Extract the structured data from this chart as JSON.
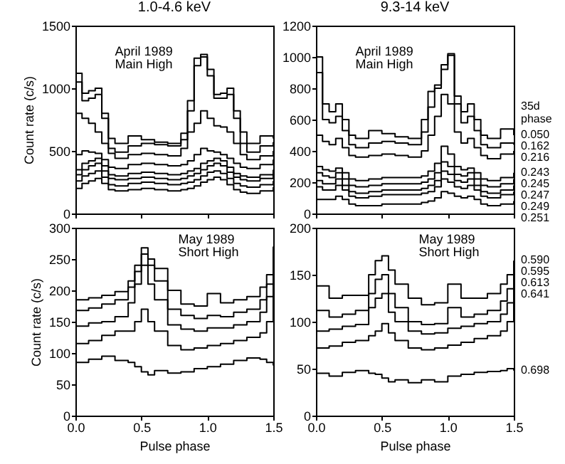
{
  "chart_data": [
    {
      "type": "step",
      "title": "1.0-4.6 keV",
      "ylabel": "Count rate (c/s)",
      "annotations": [
        "April 1989",
        "Main High"
      ],
      "tick_labels": "y",
      "grid": false,
      "x": [
        0,
        0.05,
        0.1,
        0.15,
        0.2,
        0.25,
        0.3,
        0.4,
        0.5,
        0.6,
        0.7,
        0.8,
        0.85,
        0.9,
        0.95,
        1.0,
        1.05,
        1.1,
        1.15,
        1.2,
        1.25,
        1.3,
        1.4,
        1.5
      ],
      "xlim": [
        0,
        1.5
      ],
      "xticks": [
        {
          "value": 0,
          "label": null
        },
        {
          "value": 0.5,
          "label": null
        },
        {
          "value": 1,
          "label": null
        },
        {
          "value": 1.5,
          "label": null
        }
      ],
      "ylim": [
        0,
        1500
      ],
      "yticks": [
        0,
        500,
        1000,
        1500
      ],
      "series": [
        {
          "color": "#000000",
          "values": [
            1120,
            960,
            980,
            1000,
            800,
            600,
            560,
            620,
            590,
            570,
            560,
            640,
            900,
            1240,
            1270,
            1150,
            950,
            960,
            1000,
            820,
            650,
            560,
            620,
            600
          ]
        },
        {
          "color": "#000000",
          "values": [
            1050,
            900,
            920,
            950,
            760,
            520,
            490,
            540,
            560,
            550,
            540,
            590,
            820,
            1180,
            1250,
            1100,
            920,
            920,
            950,
            760,
            560,
            490,
            540,
            570
          ]
        },
        {
          "color": "#000000",
          "values": [
            800,
            760,
            720,
            650,
            560,
            480,
            440,
            470,
            480,
            470,
            460,
            520,
            650,
            720,
            820,
            760,
            700,
            690,
            650,
            560,
            470,
            430,
            460,
            500
          ]
        },
        {
          "color": "#000000",
          "values": [
            470,
            500,
            490,
            480,
            430,
            370,
            360,
            390,
            400,
            390,
            380,
            390,
            420,
            470,
            520,
            500,
            490,
            470,
            440,
            400,
            370,
            360,
            390,
            430
          ]
        },
        {
          "color": "#000000",
          "values": [
            350,
            400,
            420,
            440,
            380,
            310,
            300,
            320,
            330,
            320,
            310,
            320,
            340,
            360,
            400,
            420,
            440,
            420,
            370,
            320,
            300,
            290,
            310,
            350
          ]
        },
        {
          "color": "#000000",
          "values": [
            310,
            350,
            380,
            400,
            340,
            280,
            270,
            280,
            290,
            280,
            270,
            280,
            300,
            320,
            350,
            380,
            400,
            380,
            330,
            290,
            270,
            260,
            280,
            310
          ]
        },
        {
          "color": "#000000",
          "values": [
            260,
            300,
            320,
            340,
            290,
            230,
            220,
            240,
            250,
            240,
            230,
            240,
            250,
            270,
            300,
            330,
            340,
            320,
            280,
            240,
            220,
            210,
            230,
            260
          ]
        },
        {
          "color": "#000000",
          "values": [
            200,
            240,
            260,
            280,
            240,
            190,
            180,
            190,
            200,
            190,
            180,
            190,
            200,
            220,
            250,
            270,
            290,
            270,
            230,
            190,
            170,
            160,
            180,
            210
          ]
        }
      ]
    },
    {
      "type": "step",
      "title": "9.3-14 keV",
      "legend_title": "35d phase",
      "annotations": [
        "April 1989",
        "Main High"
      ],
      "tick_labels": "y",
      "grid": false,
      "x": [
        0,
        0.05,
        0.1,
        0.15,
        0.2,
        0.25,
        0.3,
        0.4,
        0.5,
        0.6,
        0.7,
        0.8,
        0.85,
        0.9,
        0.95,
        1.0,
        1.05,
        1.1,
        1.15,
        1.2,
        1.25,
        1.3,
        1.4,
        1.5
      ],
      "xlim": [
        0,
        1.5
      ],
      "xticks": [
        {
          "value": 0,
          "label": null
        },
        {
          "value": 0.5,
          "label": null
        },
        {
          "value": 1,
          "label": null
        },
        {
          "value": 1.5,
          "label": null
        }
      ],
      "ylim": [
        0,
        1200
      ],
      "yticks": [
        0,
        200,
        400,
        600,
        800,
        1000,
        1200
      ],
      "series": [
        {
          "name": "0.050",
          "color": "#000000",
          "values": [
            1000,
            700,
            650,
            700,
            600,
            500,
            480,
            530,
            510,
            490,
            480,
            600,
            780,
            820,
            950,
            1020,
            750,
            650,
            700,
            600,
            500,
            480,
            540,
            500
          ]
        },
        {
          "name": "0.162",
          "color": "#000000",
          "values": [
            900,
            600,
            580,
            620,
            530,
            440,
            420,
            450,
            460,
            450,
            440,
            520,
            680,
            800,
            920,
            1010,
            700,
            580,
            620,
            530,
            440,
            420,
            450,
            440
          ]
        },
        {
          "name": "0.216",
          "color": "#000000",
          "values": [
            500,
            460,
            440,
            480,
            420,
            370,
            360,
            370,
            380,
            370,
            360,
            400,
            500,
            620,
            760,
            700,
            520,
            450,
            480,
            420,
            370,
            350,
            380,
            400
          ]
        },
        {
          "name": "0.243",
          "color": "#000000",
          "values": [
            300,
            280,
            270,
            290,
            260,
            220,
            210,
            220,
            230,
            230,
            230,
            240,
            270,
            320,
            430,
            380,
            300,
            280,
            290,
            260,
            220,
            210,
            230,
            260
          ]
        },
        {
          "name": "0.245",
          "color": "#000000",
          "values": [
            260,
            240,
            230,
            260,
            220,
            180,
            170,
            180,
            190,
            190,
            190,
            200,
            220,
            260,
            330,
            300,
            250,
            240,
            260,
            220,
            180,
            170,
            190,
            220
          ]
        },
        {
          "name": "0.247",
          "color": "#000000",
          "values": [
            210,
            190,
            190,
            220,
            180,
            140,
            130,
            140,
            150,
            150,
            150,
            160,
            180,
            210,
            270,
            250,
            210,
            200,
            220,
            180,
            140,
            130,
            150,
            180
          ]
        },
        {
          "name": "0.249",
          "color": "#000000",
          "values": [
            170,
            150,
            150,
            180,
            150,
            110,
            100,
            110,
            120,
            120,
            120,
            130,
            140,
            170,
            220,
            200,
            170,
            160,
            180,
            150,
            110,
            100,
            120,
            140
          ]
        },
        {
          "name": "0.251",
          "color": "#000000",
          "values": [
            90,
            90,
            90,
            110,
            90,
            60,
            50,
            50,
            60,
            60,
            60,
            70,
            80,
            100,
            140,
            130,
            110,
            100,
            110,
            90,
            60,
            50,
            60,
            80
          ]
        }
      ]
    },
    {
      "type": "step",
      "xlabel": "Pulse phase",
      "ylabel": "Count rate (c/s)",
      "annotations": [
        "May 1989",
        "Short High"
      ],
      "grid": false,
      "x": [
        0,
        0.1,
        0.2,
        0.3,
        0.4,
        0.45,
        0.5,
        0.55,
        0.6,
        0.7,
        0.8,
        0.9,
        1.0,
        1.1,
        1.2,
        1.3,
        1.4,
        1.45,
        1.5
      ],
      "xlim": [
        0,
        1.5
      ],
      "xticks": [
        {
          "value": 0,
          "label": "0.0"
        },
        {
          "value": 0.5,
          "label": "0.5"
        },
        {
          "value": 1,
          "label": "1.0"
        },
        {
          "value": 1.5,
          "label": "1.5"
        }
      ],
      "ylim": [
        0,
        300
      ],
      "yticks": [
        0,
        50,
        100,
        150,
        200,
        250,
        300
      ],
      "series": [
        {
          "color": "#000000",
          "values": [
            185,
            188,
            192,
            198,
            215,
            240,
            268,
            250,
            235,
            200,
            178,
            175,
            195,
            180,
            185,
            190,
            205,
            225,
            270
          ]
        },
        {
          "color": "#000000",
          "values": [
            168,
            172,
            178,
            185,
            205,
            230,
            258,
            240,
            215,
            170,
            160,
            155,
            160,
            158,
            165,
            170,
            185,
            210,
            250
          ]
        },
        {
          "color": "#000000",
          "values": [
            143,
            148,
            150,
            158,
            180,
            210,
            240,
            210,
            185,
            145,
            138,
            135,
            140,
            140,
            145,
            150,
            165,
            190,
            230
          ]
        },
        {
          "color": "#000000",
          "values": [
            115,
            120,
            128,
            135,
            135,
            150,
            170,
            150,
            135,
            112,
            105,
            108,
            112,
            115,
            120,
            125,
            132,
            150,
            200
          ]
        },
        {
          "color": "#000000",
          "values": [
            85,
            90,
            95,
            88,
            85,
            78,
            70,
            65,
            72,
            68,
            70,
            75,
            78,
            82,
            88,
            92,
            90,
            85,
            80
          ]
        }
      ]
    },
    {
      "type": "step",
      "xlabel": "Pulse phase",
      "annotations": [
        "May 1989",
        "Short High"
      ],
      "grid": false,
      "x": [
        0,
        0.1,
        0.2,
        0.3,
        0.4,
        0.45,
        0.5,
        0.55,
        0.6,
        0.7,
        0.8,
        0.9,
        1.0,
        1.1,
        1.2,
        1.3,
        1.4,
        1.45,
        1.5
      ],
      "xlim": [
        0,
        1.5
      ],
      "xticks": [
        {
          "value": 0,
          "label": "0.0"
        },
        {
          "value": 0.5,
          "label": "0.5"
        },
        {
          "value": 1,
          "label": "1.0"
        },
        {
          "value": 1.5,
          "label": "1.5"
        }
      ],
      "ylim": [
        0,
        200
      ],
      "yticks": [
        0,
        50,
        100,
        150,
        200
      ],
      "series": [
        {
          "name": "0.590",
          "color": "#000000",
          "values": [
            138,
            125,
            128,
            128,
            150,
            165,
            170,
            155,
            140,
            125,
            118,
            120,
            140,
            125,
            125,
            130,
            140,
            150,
            165
          ]
        },
        {
          "name": "0.595",
          "color": "#000000",
          "values": [
            112,
            105,
            108,
            112,
            130,
            145,
            150,
            130,
            115,
            100,
            97,
            98,
            115,
            105,
            108,
            112,
            122,
            135,
            160
          ]
        },
        {
          "name": "0.613",
          "color": "#000000",
          "values": [
            90,
            92,
            95,
            97,
            115,
            125,
            130,
            110,
            100,
            90,
            87,
            88,
            93,
            95,
            98,
            100,
            108,
            120,
            145
          ]
        },
        {
          "name": "0.641",
          "color": "#000000",
          "values": [
            72,
            74,
            78,
            80,
            85,
            90,
            98,
            88,
            80,
            72,
            70,
            72,
            75,
            78,
            82,
            85,
            90,
            100,
            130
          ]
        },
        {
          "name": "0.698",
          "color": "#000000",
          "values": [
            45,
            42,
            46,
            48,
            45,
            44,
            40,
            36,
            38,
            35,
            38,
            36,
            42,
            44,
            46,
            47,
            48,
            50,
            48
          ]
        }
      ]
    }
  ]
}
